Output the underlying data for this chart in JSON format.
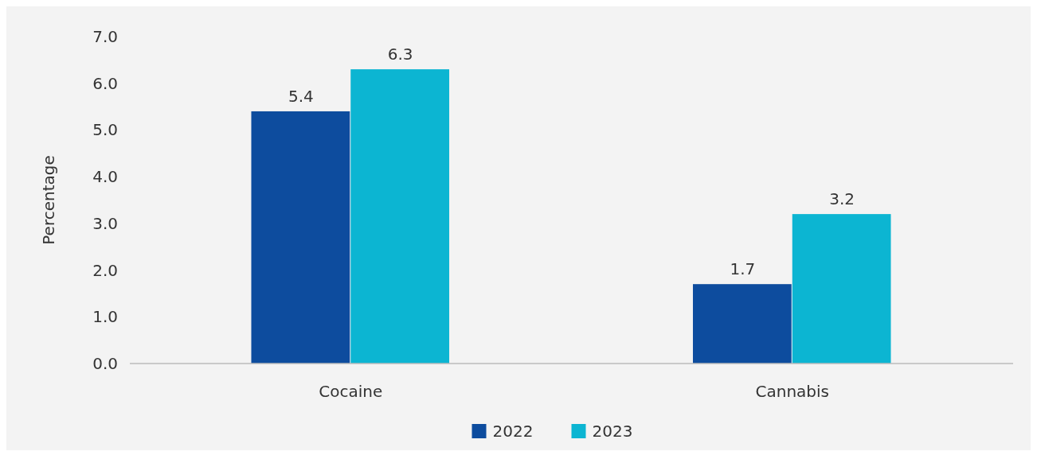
{
  "chart_data": {
    "type": "bar",
    "ylabel": "Percentage",
    "categories": [
      "Cocaine",
      "Cannabis"
    ],
    "series": [
      {
        "name": "2022",
        "color": "#0d4c9e",
        "values": [
          5.4,
          1.7
        ]
      },
      {
        "name": "2023",
        "color": "#0cb5d2",
        "values": [
          6.3,
          3.2
        ]
      }
    ],
    "ylim": [
      0,
      7
    ],
    "yticks": [
      {
        "value": 0,
        "label": "0.0"
      },
      {
        "value": 1,
        "label": "1.0"
      },
      {
        "value": 2,
        "label": "2.0"
      },
      {
        "value": 3,
        "label": "3.0"
      },
      {
        "value": 4,
        "label": "4.0"
      },
      {
        "value": 5,
        "label": "5.0"
      },
      {
        "value": 6,
        "label": "6.0"
      },
      {
        "value": 7,
        "label": "7.0"
      }
    ],
    "data_labels": true,
    "grid": false,
    "legend": "bottom"
  }
}
